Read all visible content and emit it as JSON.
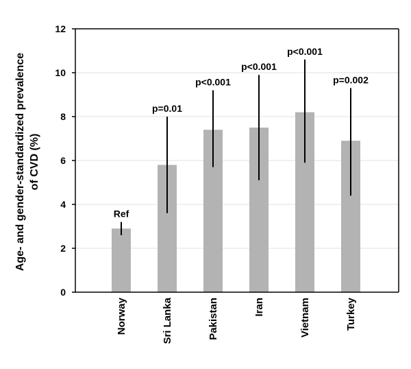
{
  "chart_data": {
    "type": "bar",
    "categories": [
      "Norway",
      "Sri Lanka",
      "Pakistan",
      "Iran",
      "Vietnam",
      "Turkey"
    ],
    "values": [
      2.9,
      5.8,
      7.4,
      7.5,
      8.2,
      6.9
    ],
    "error_low": [
      2.6,
      3.6,
      5.7,
      5.1,
      5.9,
      4.4
    ],
    "error_high": [
      3.2,
      8.0,
      9.2,
      9.9,
      10.6,
      9.3
    ],
    "annotations": [
      "Ref",
      "p=0.01",
      "p<0.001",
      "p<0.001",
      "p<0.001",
      "p=0.002"
    ],
    "ylabel_line1": "Age- and gender-standardized prevalence",
    "ylabel_line2": "of CVD (%)",
    "ylim": [
      0,
      12
    ],
    "yticks": [
      "0",
      "2",
      "4",
      "6",
      "8",
      "10",
      "12"
    ],
    "grid": true,
    "colors": {
      "bar": "#b3b3b3",
      "error": "#000000",
      "grid": "#e0e0e0",
      "axis": "#000000"
    }
  }
}
